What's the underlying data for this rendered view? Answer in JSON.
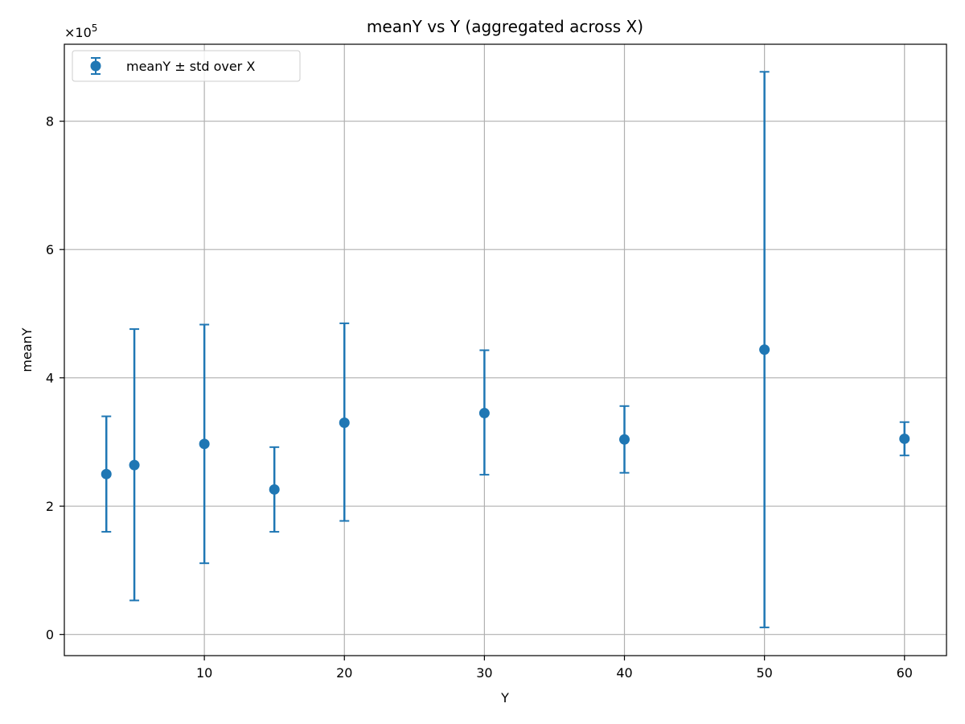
{
  "chart_data": {
    "type": "scatter",
    "title": "meanY vs Y (aggregated across X)",
    "xlabel": "Y",
    "ylabel": "meanY",
    "y_offset_label": "×10",
    "y_offset_exponent": "5",
    "xlim": [
      0,
      63
    ],
    "ylim": [
      -0.33,
      9.2
    ],
    "x_ticks": [
      10,
      20,
      30,
      40,
      50,
      60
    ],
    "y_ticks": [
      0,
      2,
      4,
      6,
      8
    ],
    "grid": true,
    "legend_position": "top-left",
    "color": "#1f77b4",
    "series": [
      {
        "name": "meanY ± std over X",
        "x": [
          3,
          5,
          10,
          15,
          20,
          30,
          40,
          50,
          60
        ],
        "y": [
          2.5,
          2.64,
          2.97,
          2.26,
          3.3,
          3.45,
          3.04,
          4.44,
          3.05
        ],
        "yerr_low": [
          1.6,
          0.53,
          1.11,
          1.6,
          1.77,
          2.49,
          2.52,
          0.11,
          2.79
        ],
        "yerr_high": [
          3.4,
          4.76,
          4.83,
          2.92,
          4.85,
          4.43,
          3.56,
          8.77,
          3.31
        ]
      }
    ]
  }
}
